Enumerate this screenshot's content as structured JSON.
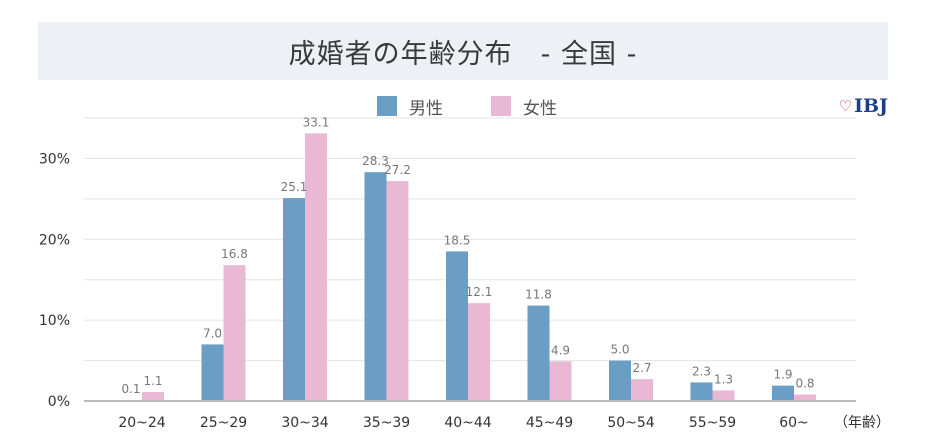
{
  "chart_data": {
    "type": "bar",
    "title": "成婚者の年齢分布　- 全国 -",
    "categories": [
      "20~24",
      "25~29",
      "30~34",
      "35~39",
      "40~44",
      "45~49",
      "50~54",
      "55~59",
      "60~"
    ],
    "series": [
      {
        "name": "男性",
        "color": "#6b9ec4",
        "values": [
          0.1,
          7.0,
          25.1,
          28.3,
          18.5,
          11.8,
          5.0,
          2.3,
          1.9
        ],
        "labels": [
          "0.1",
          "7.0",
          "25.1",
          "28.3",
          "18.5",
          "11.8",
          "5.0",
          "2.3",
          "1.9"
        ]
      },
      {
        "name": "女性",
        "color": "#e8b8d4",
        "values": [
          1.1,
          16.8,
          33.1,
          27.2,
          12.1,
          4.9,
          2.7,
          1.3,
          0.8
        ],
        "labels": [
          "1.1",
          "16.8",
          "33.1",
          "27.2",
          "12.1",
          "4.9",
          "2.7",
          "1.3",
          "0.8"
        ]
      }
    ],
    "ylim": [
      0,
      35
    ],
    "yticks": [
      0,
      10,
      20,
      30
    ],
    "ytick_labels": [
      "0%",
      "10%",
      "20%",
      "30%"
    ],
    "xunit": "（年齢）",
    "grid": true,
    "legend": "top-center"
  },
  "logo": {
    "text": "IBJ",
    "icon": "heart-icon"
  }
}
